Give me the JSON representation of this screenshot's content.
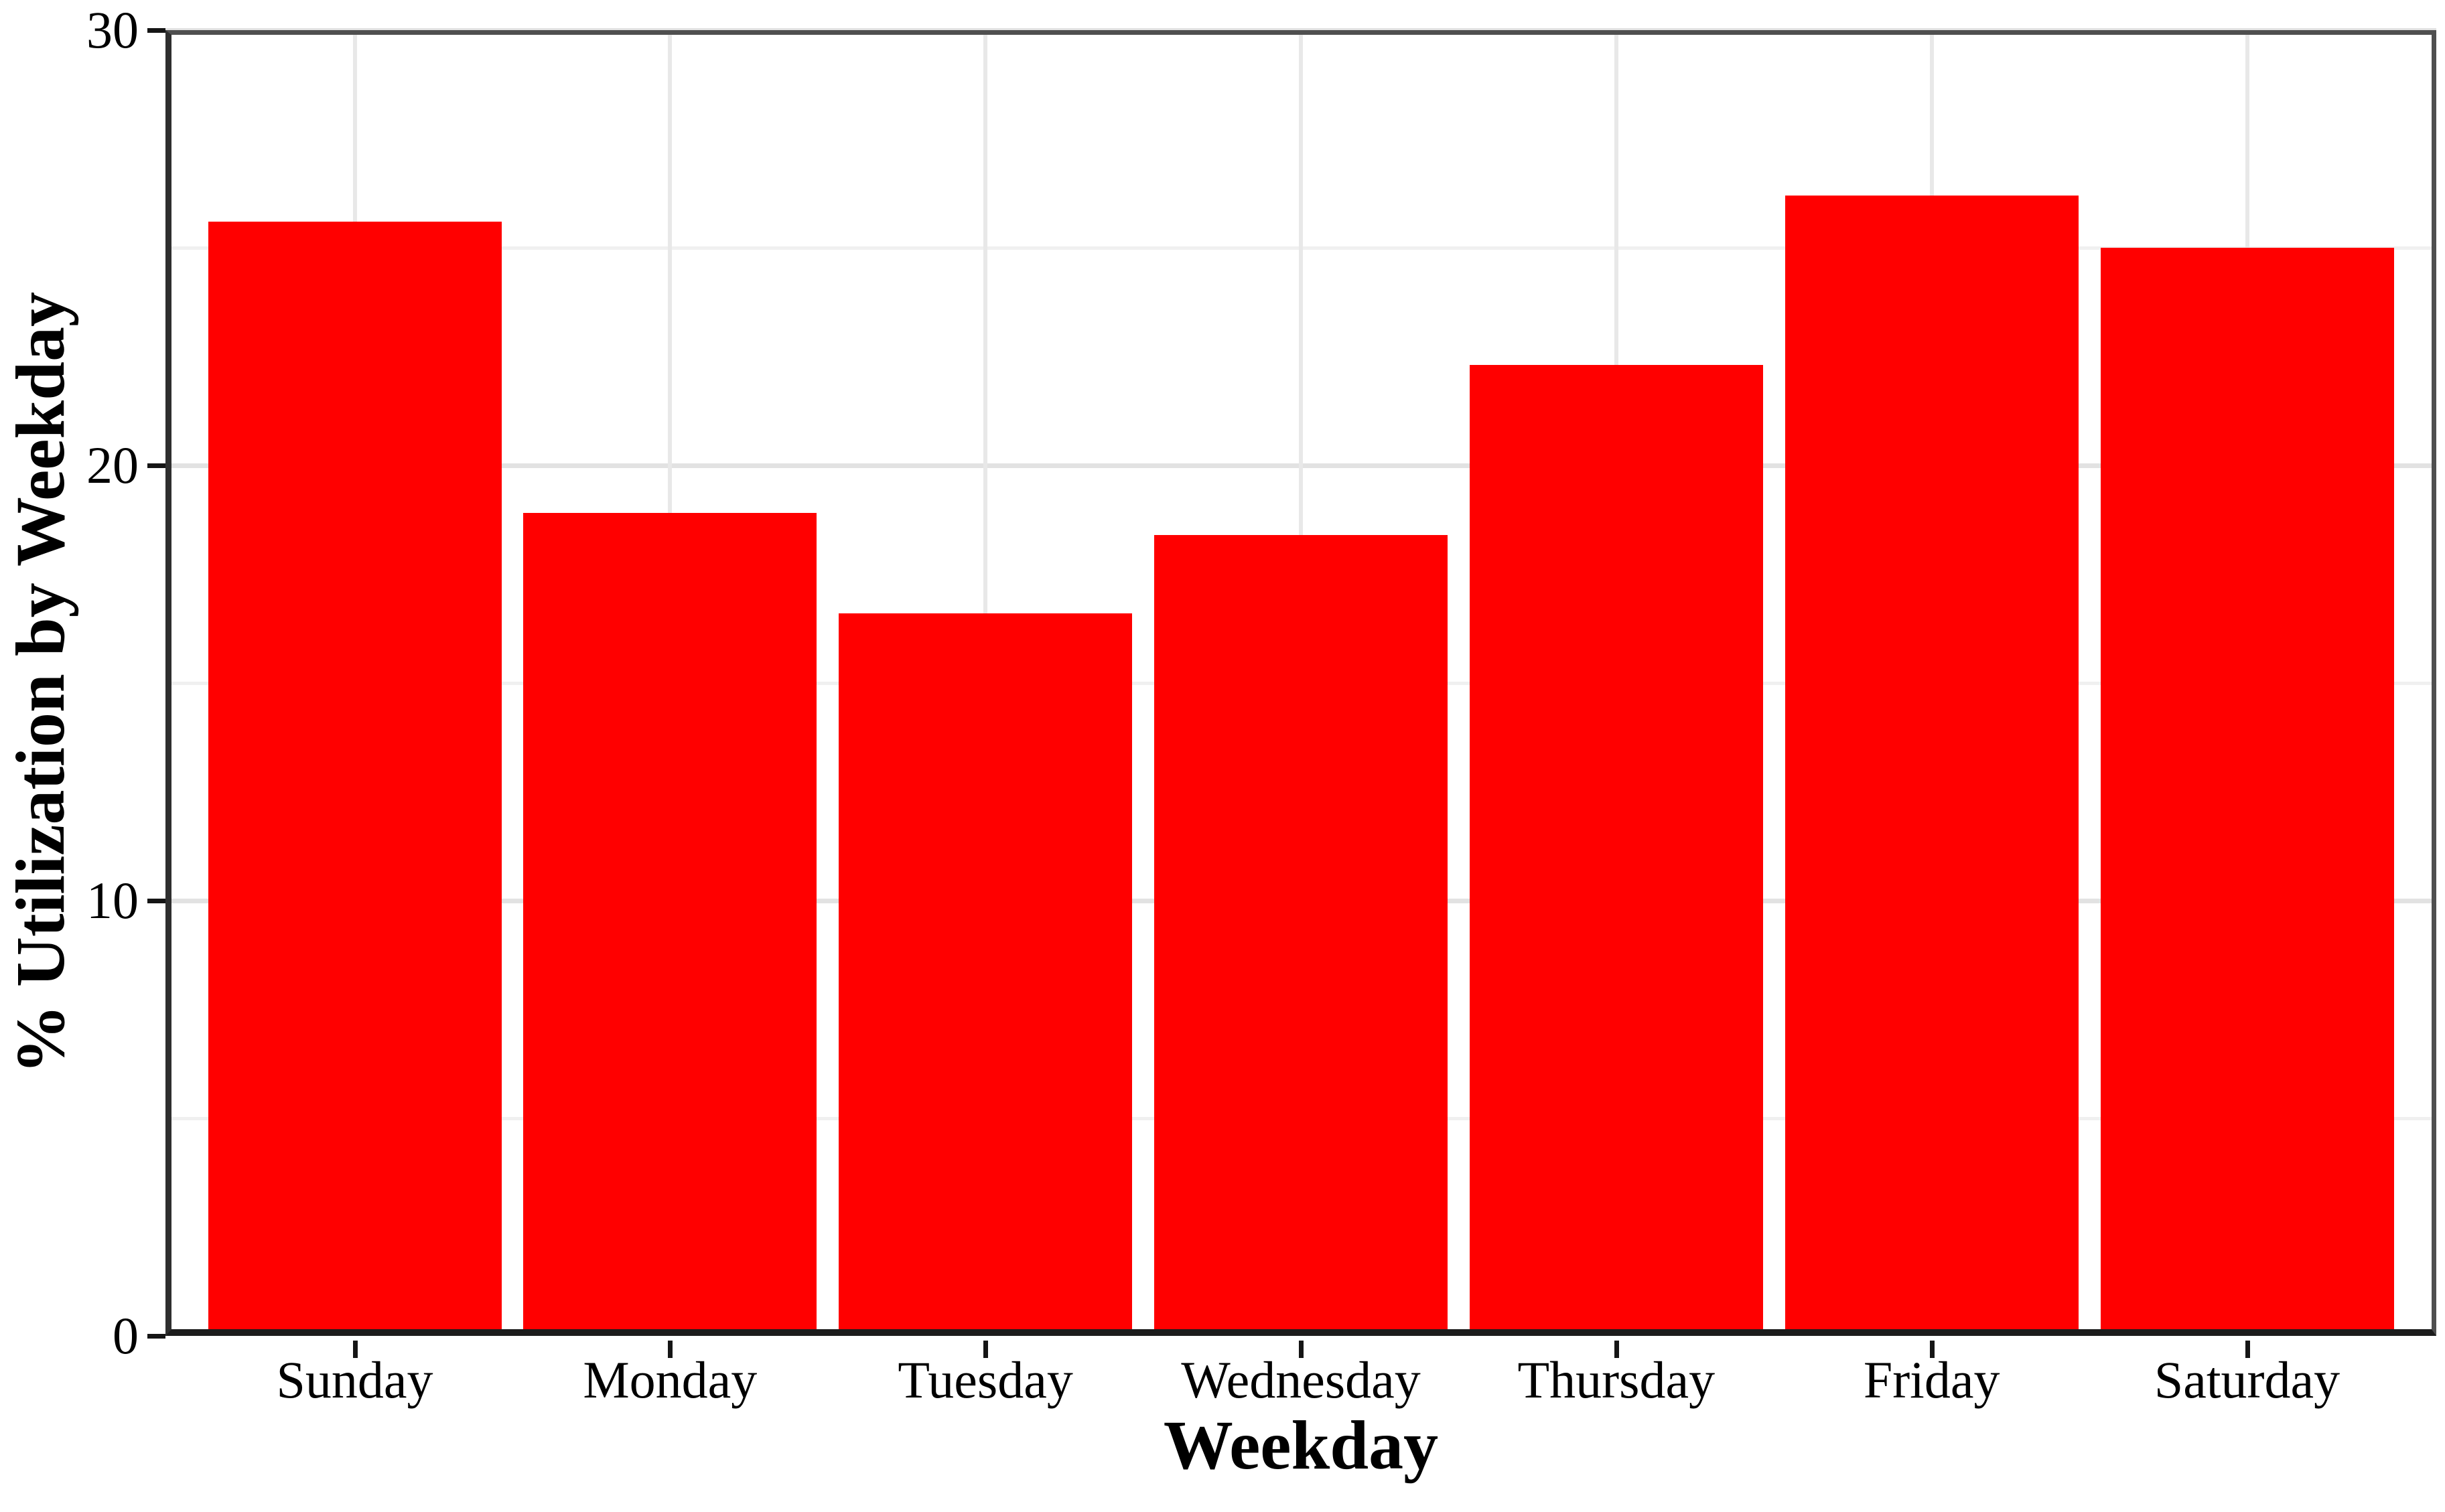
{
  "chart_data": {
    "type": "bar",
    "title": "",
    "xlabel": "Weekday",
    "ylabel": "% Utilization by Weekday",
    "categories": [
      "Sunday",
      "Monday",
      "Tuesday",
      "Wednesday",
      "Thursday",
      "Friday",
      "Saturday"
    ],
    "values": [
      25.6,
      18.9,
      16.6,
      18.4,
      22.3,
      26.2,
      25.0
    ],
    "ylim": [
      0,
      30
    ],
    "yticks": [
      0,
      10,
      20,
      30
    ],
    "yticks_minor": [
      5,
      15,
      25
    ],
    "grid": "major-and-minor-horizontal, vertical-at-category-centers",
    "legend": "none",
    "colors": {
      "bar_fill": "#FF0000",
      "grid_major": "#E2E2E2",
      "grid_minor": "#F0F0F0",
      "grid_vertical": "#E8E8E8",
      "panel_border": "#4F4F4F",
      "axis_line": "#1C1C1C",
      "text": "#000000",
      "background": "#FFFFFF"
    }
  }
}
